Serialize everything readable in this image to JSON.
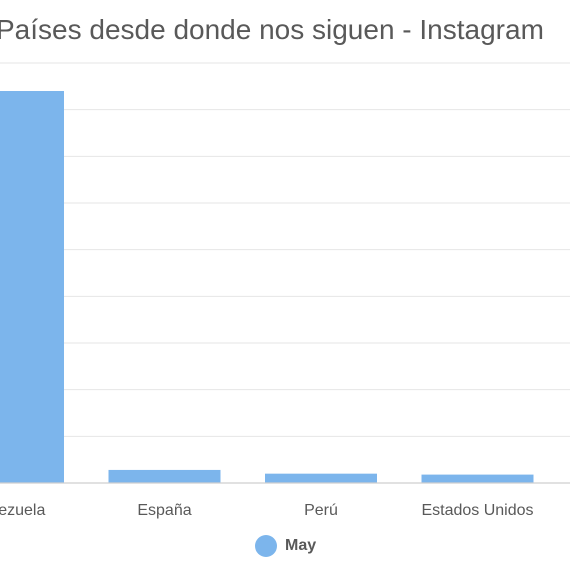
{
  "chart_data": {
    "type": "bar",
    "title": "Países desde donde nos siguen - Instagram",
    "categories": [
      "Venezuela",
      "España",
      "Perú",
      "Estados Unidos"
    ],
    "series": [
      {
        "name": "May",
        "values": [
          420,
          14,
          10,
          9
        ],
        "color": "#7cb5ec"
      }
    ],
    "ylim": [
      0,
      450
    ],
    "grid": true,
    "legend_position": "bottom"
  }
}
